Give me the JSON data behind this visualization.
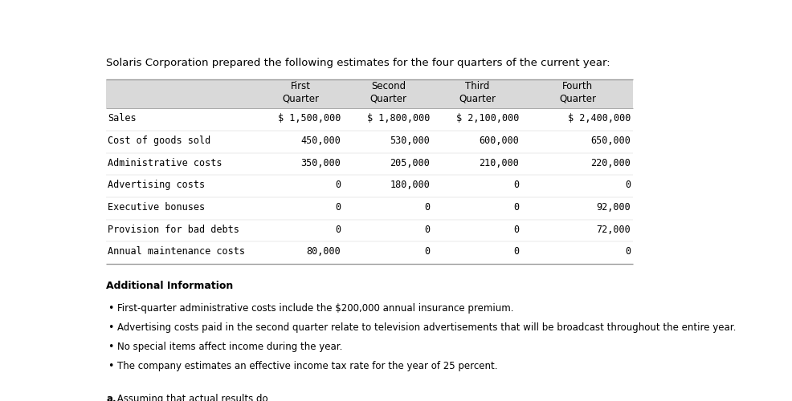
{
  "title": "Solaris Corporation prepared the following estimates for the four quarters of the current year:",
  "header_row": [
    "",
    "First\nQuarter",
    "Second\nQuarter",
    "Third\nQuarter",
    "Fourth\nQuarter"
  ],
  "rows": [
    [
      "Sales",
      "$ 1,500,000",
      "$ 1,800,000",
      "$ 2,100,000",
      "$ 2,400,000"
    ],
    [
      "Cost of goods sold",
      "450,000",
      "530,000",
      "600,000",
      "650,000"
    ],
    [
      "Administrative costs",
      "350,000",
      "205,000",
      "210,000",
      "220,000"
    ],
    [
      "Advertising costs",
      "0",
      "180,000",
      "0",
      "0"
    ],
    [
      "Executive bonuses",
      "0",
      "0",
      "0",
      "92,000"
    ],
    [
      "Provision for bad debts",
      "0",
      "0",
      "0",
      "72,000"
    ],
    [
      "Annual maintenance costs",
      "80,000",
      "0",
      "0",
      "0"
    ]
  ],
  "header_bg": "#d9d9d9",
  "table_border": "#999999",
  "additional_info_title": "Additional Information",
  "bullets": [
    "First-quarter administrative costs include the $200,000 annual insurance premium.",
    "Advertising costs paid in the second quarter relate to television advertisements that will be broadcast throughout the entire year.",
    "No special items affect income during the year.",
    "The company estimates an effective income tax rate for the year of 25 percent."
  ],
  "bg_color": "#ffffff",
  "font_size_title": 9.5,
  "font_size_table": 8.5,
  "font_size_body": 9.0
}
